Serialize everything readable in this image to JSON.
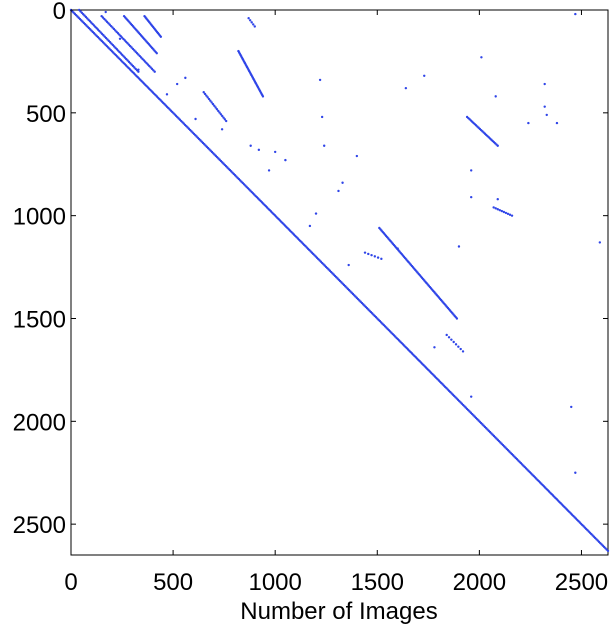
{
  "chart_data": {
    "type": "scatter",
    "title": "",
    "xlabel": "Number of Images",
    "ylabel": "",
    "xlim": [
      0,
      2630
    ],
    "ylim": [
      0,
      2650
    ],
    "y_inverted": true,
    "xticks": [
      0,
      500,
      1000,
      1500,
      2000,
      2500
    ],
    "xtick_labels": [
      "0",
      "500",
      "1000",
      "1500",
      "2000",
      "2500"
    ],
    "yticks": [
      0,
      500,
      1000,
      1500,
      2000,
      2500
    ],
    "ytick_labels": [
      "0",
      "500",
      "1000",
      "1500",
      "2000",
      "2500"
    ],
    "grid": false,
    "marker_color": "#2f45e8",
    "segments": [
      {
        "from": [
          0,
          0
        ],
        "to": [
          2630,
          2630
        ],
        "count": 420
      },
      {
        "from": [
          40,
          0
        ],
        "to": [
          330,
          300
        ],
        "count": 45
      },
      {
        "from": [
          150,
          30
        ],
        "to": [
          410,
          300
        ],
        "count": 40
      },
      {
        "from": [
          260,
          30
        ],
        "to": [
          420,
          210
        ],
        "count": 30
      },
      {
        "from": [
          360,
          30
        ],
        "to": [
          440,
          130
        ],
        "count": 18
      },
      {
        "from": [
          870,
          40
        ],
        "to": [
          900,
          80
        ],
        "count": 5
      },
      {
        "from": [
          820,
          200
        ],
        "to": [
          940,
          420
        ],
        "count": 35
      },
      {
        "from": [
          650,
          400
        ],
        "to": [
          760,
          540
        ],
        "count": 18
      },
      {
        "from": [
          1510,
          1060
        ],
        "to": [
          1890,
          1500
        ],
        "count": 70
      },
      {
        "from": [
          1940,
          520
        ],
        "to": [
          2090,
          660
        ],
        "count": 25
      },
      {
        "from": [
          2070,
          960
        ],
        "to": [
          2160,
          1000
        ],
        "count": 10
      },
      {
        "from": [
          1840,
          1580
        ],
        "to": [
          1920,
          1660
        ],
        "count": 8
      },
      {
        "from": [
          1440,
          1180
        ],
        "to": [
          1520,
          1210
        ],
        "count": 6
      }
    ],
    "points": [
      [
        170,
        10
      ],
      [
        240,
        140
      ],
      [
        330,
        290
      ],
      [
        470,
        410
      ],
      [
        520,
        360
      ],
      [
        560,
        330
      ],
      [
        610,
        530
      ],
      [
        740,
        580
      ],
      [
        880,
        660
      ],
      [
        920,
        680
      ],
      [
        970,
        780
      ],
      [
        1000,
        690
      ],
      [
        1050,
        730
      ],
      [
        1170,
        1050
      ],
      [
        1200,
        990
      ],
      [
        1220,
        340
      ],
      [
        1230,
        520
      ],
      [
        1240,
        660
      ],
      [
        1310,
        880
      ],
      [
        1330,
        840
      ],
      [
        1360,
        1240
      ],
      [
        1400,
        710
      ],
      [
        1640,
        380
      ],
      [
        1730,
        320
      ],
      [
        1780,
        1640
      ],
      [
        1900,
        1150
      ],
      [
        1960,
        780
      ],
      [
        1960,
        910
      ],
      [
        2010,
        230
      ],
      [
        2080,
        420
      ],
      [
        2090,
        920
      ],
      [
        2240,
        550
      ],
      [
        2320,
        360
      ],
      [
        2320,
        470
      ],
      [
        2330,
        510
      ],
      [
        2380,
        550
      ],
      [
        2450,
        1930
      ],
      [
        2470,
        20
      ],
      [
        2470,
        2250
      ],
      [
        2590,
        1130
      ],
      [
        1960,
        1880
      ],
      [
        1600,
        1160
      ]
    ]
  }
}
